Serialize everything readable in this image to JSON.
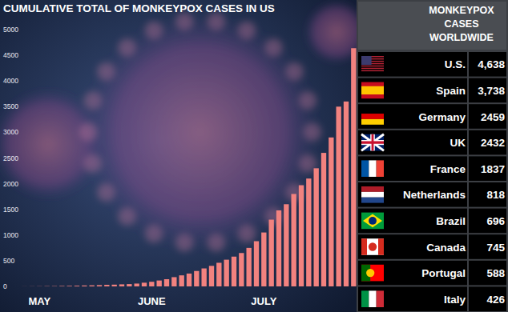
{
  "chart_data": {
    "type": "bar",
    "title": "CUMULATIVE TOTAL OF MONKEYPOX CASES IN US",
    "categories": [
      null,
      null,
      "MAY",
      null,
      null,
      null,
      null,
      null,
      null,
      null,
      null,
      null,
      null,
      null,
      null,
      null,
      null,
      "JUNE",
      null,
      null,
      null,
      null,
      null,
      null,
      null,
      null,
      null,
      null,
      null,
      null,
      null,
      null,
      "JULY",
      null,
      null,
      null,
      null,
      null,
      null,
      null,
      null,
      null,
      null,
      null,
      null
    ],
    "values": [
      1,
      2,
      3,
      5,
      6,
      9,
      11,
      14,
      18,
      21,
      25,
      30,
      34,
      40,
      45,
      55,
      72,
      90,
      115,
      140,
      180,
      215,
      250,
      300,
      350,
      400,
      460,
      520,
      580,
      650,
      750,
      880,
      1050,
      1300,
      1480,
      1600,
      1800,
      1970,
      2100,
      2300,
      2600,
      2900,
      3500,
      3600,
      4638
    ],
    "color": "#f2827f",
    "ylim": [
      0,
      5000
    ],
    "yticks": [
      0,
      500,
      1000,
      1500,
      2000,
      2500,
      3000,
      3500,
      4000,
      4500,
      5000
    ],
    "grid": false,
    "data_labels": false
  },
  "table": {
    "title": "MONKEYPOX CASES WORLDWIDE",
    "rows": [
      [
        "U.S.",
        "4,638"
      ],
      [
        "Spain",
        "3,738"
      ],
      [
        "Germany",
        "2459"
      ],
      [
        "UK",
        "2432"
      ],
      [
        "France",
        "1837"
      ],
      [
        "Netherlands",
        "818"
      ],
      [
        "Brazil",
        "696"
      ],
      [
        "Canada",
        "745"
      ],
      [
        "Portugal",
        "588"
      ],
      [
        "Italy",
        "426"
      ]
    ]
  }
}
